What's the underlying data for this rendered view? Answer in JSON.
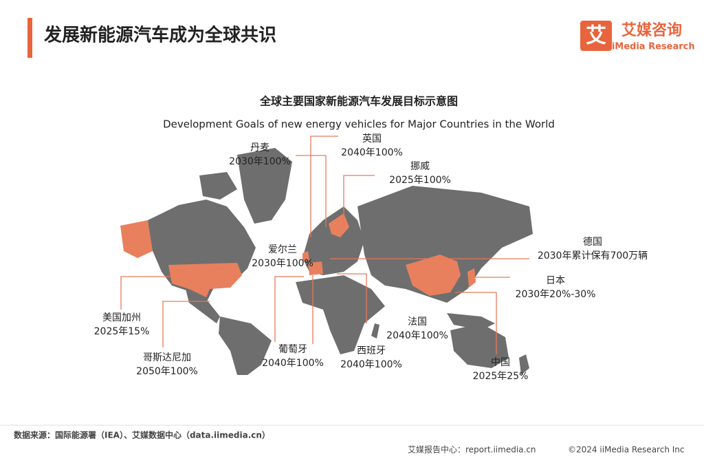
{
  "header": {
    "title": "发展新能源汽车成为全球共识",
    "logo_icon": "艾",
    "logo_cn": "艾媒咨询",
    "logo_en": "iiMedia Research"
  },
  "map": {
    "title_cn": "全球主要国家新能源汽车发展目标示意图",
    "title_en": "Development Goals of new energy vehicles for Major Countries in the World",
    "annotations": [
      {
        "country": "丹麦",
        "goal": "2030年100%"
      },
      {
        "country": "英国",
        "goal": "2040年100%"
      },
      {
        "country": "挪威",
        "goal": "2025年100%"
      },
      {
        "country": "爱尔兰",
        "goal": "2030年100%"
      },
      {
        "country": "德国",
        "goal": "2030年累计保有700万辆"
      },
      {
        "country": "日本",
        "goal": "2030年20%-30%"
      },
      {
        "country": "法国",
        "goal": "2040年100%"
      },
      {
        "country": "美国加州",
        "goal": "2025年15%"
      },
      {
        "country": "哥斯达尼加",
        "goal": "2050年100%"
      },
      {
        "country": "葡萄牙",
        "goal": "2040年100%"
      },
      {
        "country": "西班牙",
        "goal": "2040年100%"
      },
      {
        "country": "中国",
        "goal": "2025年25%"
      }
    ]
  },
  "footer": {
    "source": "数据来源：国际能源署（IEA）、艾媒数据中心（data.iimedia.cn）",
    "report": "艾媒报告中心：report.iimedia.cn",
    "copyright": "©2024  iiMedia Research  Inc"
  }
}
